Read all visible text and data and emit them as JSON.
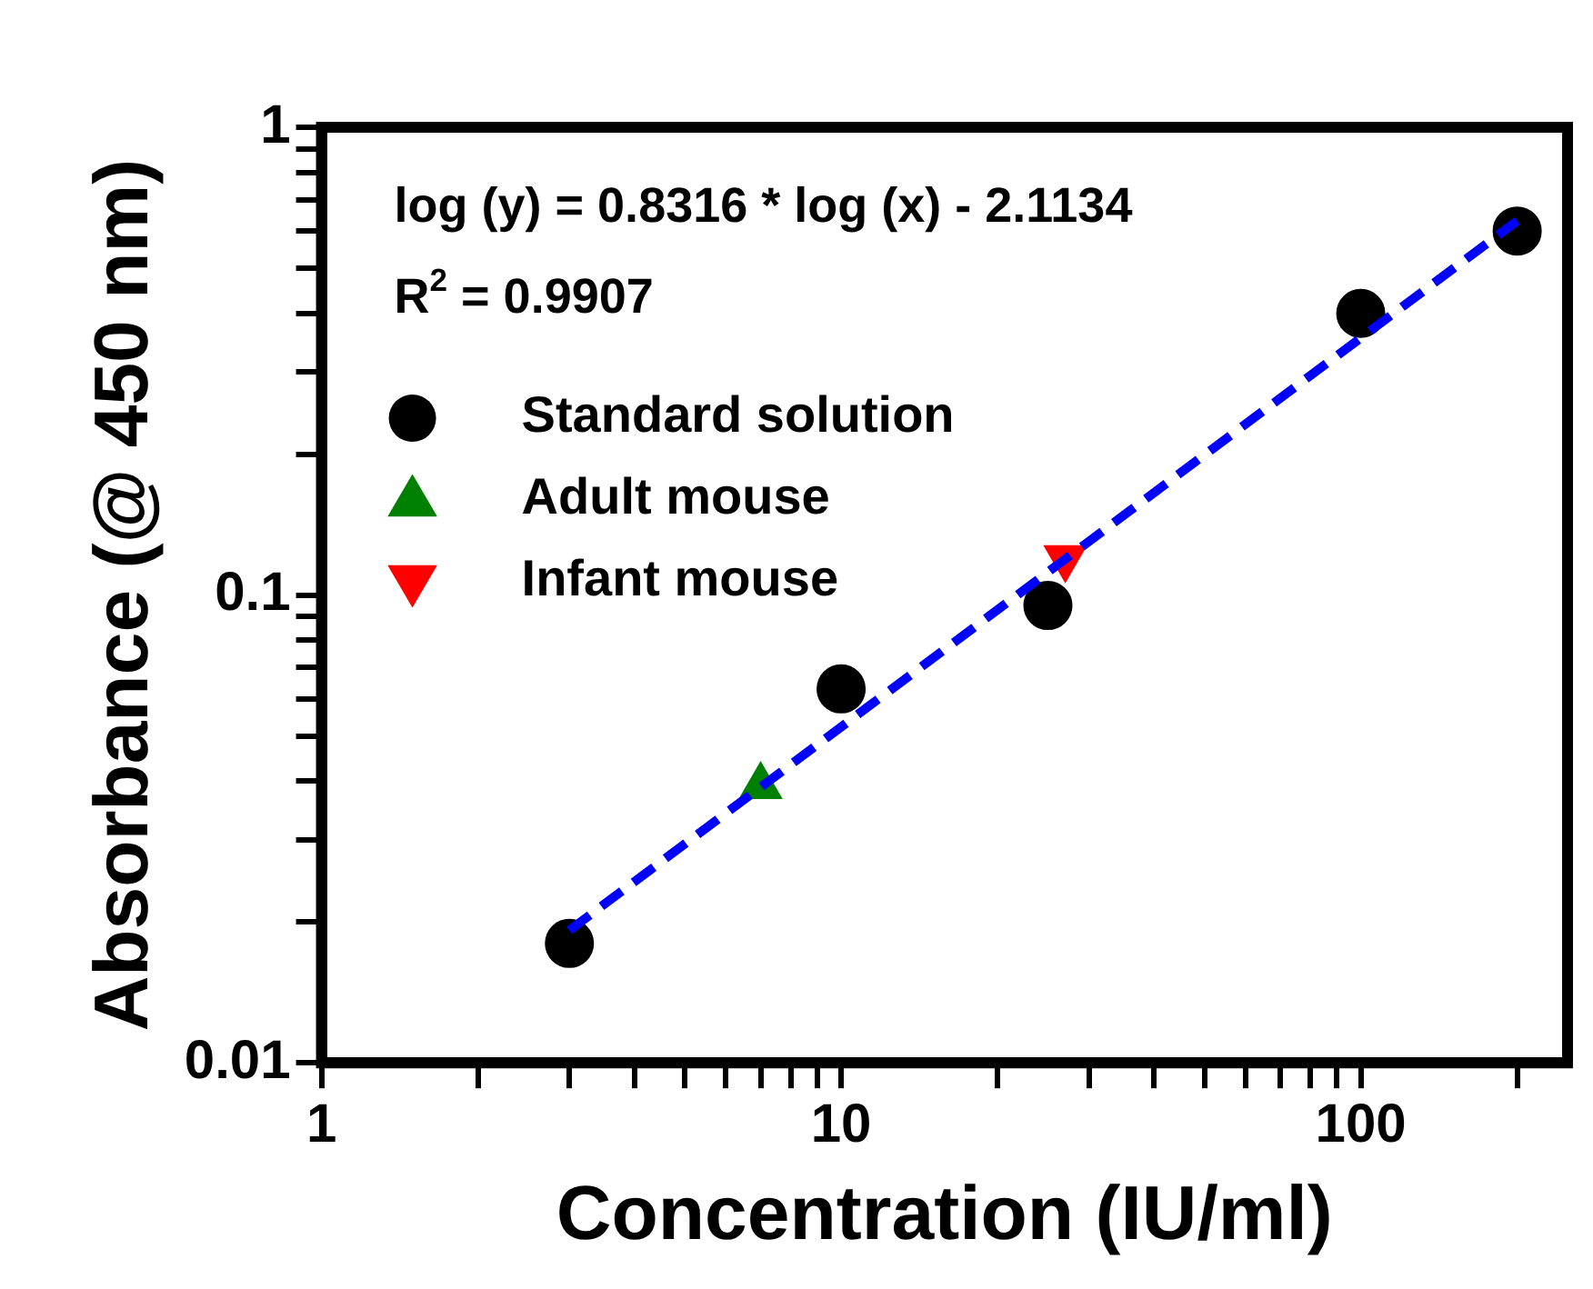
{
  "chart_data": {
    "type": "scatter",
    "xlabel": "Concentration (IU/ml)",
    "ylabel": "Absorbance (@ 450 nm)",
    "log": "xy",
    "xlim": [
      1,
      250
    ],
    "ylim": [
      0.01,
      1
    ],
    "xticks": [
      1,
      {
        "value": 2,
        "label": null
      },
      {
        "value": 3,
        "label": null
      },
      {
        "value": 4,
        "label": null
      },
      {
        "value": 5,
        "label": null
      },
      {
        "value": 6,
        "label": null
      },
      {
        "value": 7,
        "label": null
      },
      {
        "value": 8,
        "label": null
      },
      {
        "value": 9,
        "label": null
      },
      10,
      {
        "value": 20,
        "label": null
      },
      {
        "value": 30,
        "label": null
      },
      {
        "value": 40,
        "label": null
      },
      {
        "value": 50,
        "label": null
      },
      {
        "value": 60,
        "label": null
      },
      {
        "value": 70,
        "label": null
      },
      {
        "value": 80,
        "label": null
      },
      {
        "value": 90,
        "label": null
      },
      100,
      {
        "value": 200,
        "label": null
      }
    ],
    "yticks": [
      0.01,
      {
        "value": 0.02,
        "label": null
      },
      {
        "value": 0.03,
        "label": null
      },
      {
        "value": 0.04,
        "label": null
      },
      {
        "value": 0.05,
        "label": null
      },
      {
        "value": 0.06,
        "label": null
      },
      {
        "value": 0.07,
        "label": null
      },
      {
        "value": 0.08,
        "label": null
      },
      {
        "value": 0.09,
        "label": null
      },
      0.1,
      {
        "value": 0.2,
        "label": null
      },
      {
        "value": 0.3,
        "label": null
      },
      {
        "value": 0.4,
        "label": null
      },
      {
        "value": 0.5,
        "label": null
      },
      {
        "value": 0.6,
        "label": null
      },
      {
        "value": 0.7,
        "label": null
      },
      {
        "value": 0.8,
        "label": null
      },
      {
        "value": 0.9,
        "label": null
      },
      1
    ],
    "legend": "top left",
    "grid": false,
    "annotations": [
      "log (y) = 0.8316 * log (x) - 2.1134",
      "R$^{2}$ = 0.9907"
    ],
    "series": [
      {
        "type": "line",
        "color": "#0000ff",
        "x": [
          3,
          200
        ],
        "values": [
          0.0192,
          0.631
        ],
        "line_style": "dashed",
        "marker": "none"
      },
      {
        "name": "Standard solution",
        "color": "#000000",
        "marker": "circle",
        "x": [
          3,
          10,
          25,
          100,
          200
        ],
        "values": [
          0.018,
          0.063,
          0.095,
          0.4,
          0.6
        ]
      },
      {
        "name": "Adult mouse",
        "color": "#008000",
        "marker": "triangle",
        "x": [
          7
        ],
        "values": [
          0.039
        ]
      },
      {
        "name": "Infant mouse",
        "color": "#ff0000",
        "marker": "triangle_down",
        "x": [
          27
        ],
        "values": [
          0.12
        ]
      }
    ]
  }
}
